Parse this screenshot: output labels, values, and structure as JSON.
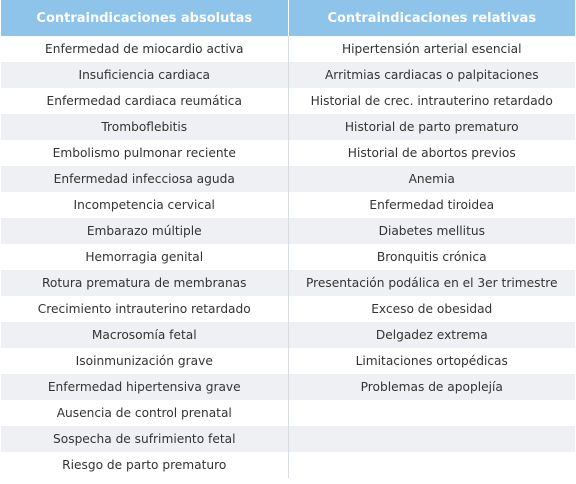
{
  "table": {
    "headers": [
      "Contraindicaciones absolutas",
      "Contraindicaciones relativas"
    ],
    "rows": [
      [
        "Enfermedad de miocardio activa",
        "Hipertensión arterial esencial"
      ],
      [
        "Insuficiencia cardiaca",
        "Arritmias cardiacas o palpitaciones"
      ],
      [
        "Enfermedad cardiaca reumática",
        "Historial de crec. intrauterino retardado"
      ],
      [
        "Tromboflebitis",
        "Historial de parto prematuro"
      ],
      [
        "Embolismo pulmonar reciente",
        "Historial de abortos previos"
      ],
      [
        "Enfermedad infecciosa aguda",
        "Anemia"
      ],
      [
        "Incompetencia cervical",
        "Enfermedad tiroidea"
      ],
      [
        "Embarazo múltiple",
        "Diabetes mellitus"
      ],
      [
        "Hemorragia genital",
        "Bronquitis crónica"
      ],
      [
        "Rotura prematura de membranas",
        "Presentación podálica en el 3er trimestre"
      ],
      [
        "Crecimiento intrauterino retardado",
        "Exceso de obesidad"
      ],
      [
        "Macrosomía fetal",
        "Delgadez extrema"
      ],
      [
        "Isoinmunización grave",
        "Limitaciones ortopédicas"
      ],
      [
        "Enfermedad hipertensiva grave",
        "Problemas de apoplejía"
      ],
      [
        "Ausencia de control prenatal",
        ""
      ],
      [
        "Sospecha de sufrimiento fetal",
        ""
      ],
      [
        "Riesgo de parto prematuro",
        ""
      ]
    ]
  },
  "colors": {
    "header_bg": "#8ec3ea",
    "header_text": "#ffffff",
    "row_alt_bg": "#eef0f3",
    "cell_text": "#333333"
  }
}
